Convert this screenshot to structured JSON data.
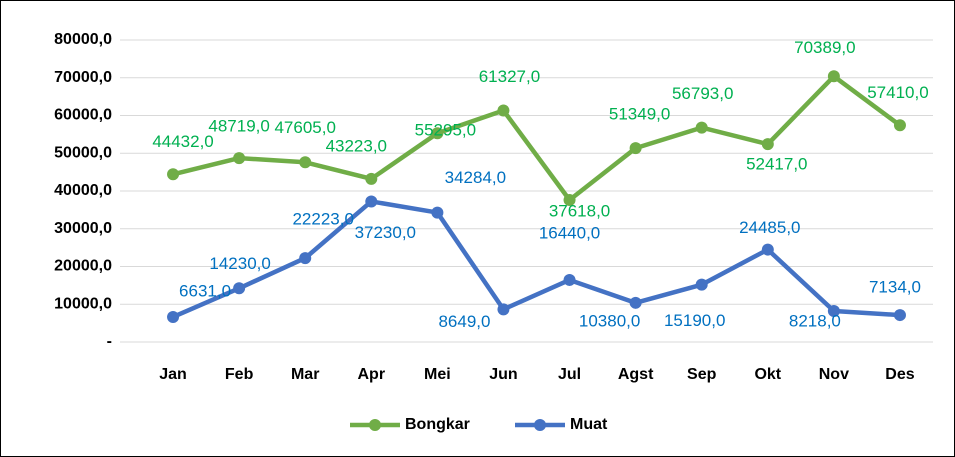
{
  "chart_data": {
    "type": "line",
    "categories": [
      "Jan",
      "Feb",
      "Mar",
      "Apr",
      "Mei",
      "Jun",
      "Jul",
      "Agst",
      "Sep",
      "Okt",
      "Nov",
      "Des"
    ],
    "series": [
      {
        "name": "Bongkar",
        "color": "#70ad47",
        "label_color": "#00b050",
        "values": [
          44432,
          48719,
          47605,
          43223,
          55295,
          61327,
          37618,
          51349,
          56793,
          52417,
          70389,
          57410
        ],
        "value_labels": [
          "44432,0",
          "48719,0",
          "47605,0",
          "43223,0",
          "55295,0",
          "61327,0",
          "37618,0",
          "51349,0",
          "56793,0",
          "52417,0",
          "70389,0",
          "57410,0"
        ]
      },
      {
        "name": "Muat",
        "color": "#4472c4",
        "label_color": "#0070c0",
        "values": [
          6631,
          14230,
          22223,
          37230,
          34284,
          8649,
          16440,
          10380,
          15190,
          24485,
          8218,
          7134
        ],
        "value_labels": [
          "6631,0",
          "14230,0",
          "22223,0",
          "37230,0",
          "34284,0",
          "8649,0",
          "16440,0",
          "10380,0",
          "15190,0",
          "24485,0",
          "8218,0",
          "7134,0"
        ]
      }
    ],
    "ylim": [
      0,
      80000
    ],
    "yticks": [
      {
        "value": 0,
        "label": "-"
      },
      {
        "value": 10000,
        "label": "10000,0"
      },
      {
        "value": 20000,
        "label": "20000,0"
      },
      {
        "value": 30000,
        "label": "30000,0"
      },
      {
        "value": 40000,
        "label": "40000,0"
      },
      {
        "value": 50000,
        "label": "50000,0"
      },
      {
        "value": 60000,
        "label": "60000,0"
      },
      {
        "value": 70000,
        "label": "70000,0"
      },
      {
        "value": 80000,
        "label": "80000,0"
      }
    ],
    "grid": true,
    "legend": "bottom"
  }
}
